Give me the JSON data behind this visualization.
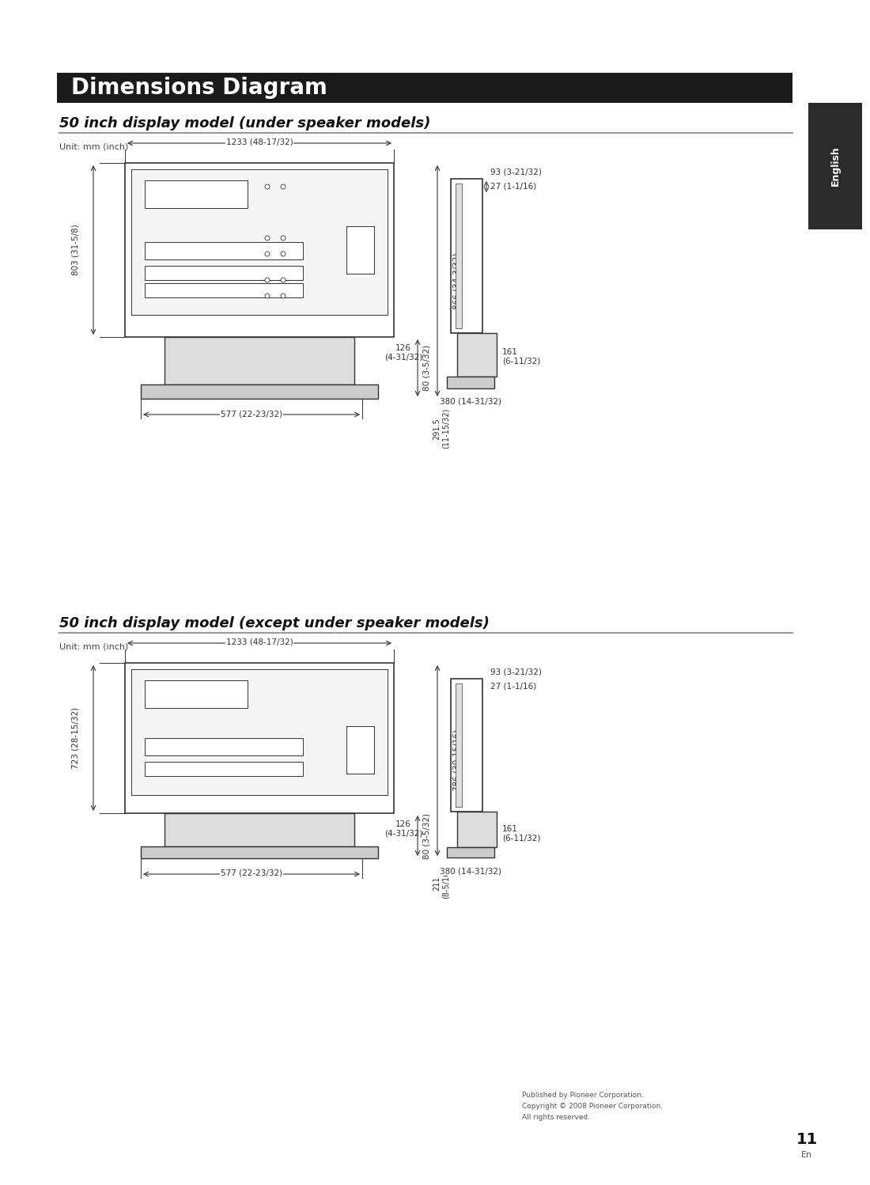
{
  "title": "Dimensions Diagram",
  "title_bg": "#1a1a1a",
  "title_color": "#ffffff",
  "section1_title": "50 inch display model (under speaker models)",
  "section2_title": "50 inch display model (except under speaker models)",
  "unit_label": "Unit: mm (inch)",
  "english_tab_color": "#2a2a2a",
  "english_text": "English",
  "page_number": "11",
  "page_sub": "En",
  "footer_line1": "Published by Pioneer Corporation.",
  "footer_line2": "Copyright © 2008 Pioneer Corporation.",
  "footer_line3": "All rights reserved.",
  "bg_color": "#ffffff",
  "line_color": "#333333",
  "dim_color": "#333333",
  "gray_fill": "#cccccc",
  "light_gray": "#e8e8e8",
  "section1_dims": {
    "front_width_label": "1233 (48-17/32)",
    "front_height_label": "803 (31-5/8)",
    "front_inner_height_label": "866 (34-3/32)",
    "front_partial_label": "80 (3-5/32)",
    "front_stand_label": "291.5\n(11-15/32)",
    "front_base_label": "577 (22-23/32)",
    "side_top_label": "93 (3-21/32)",
    "side_inner_label": "27 (1-1/16)",
    "side_depth_label": "126\n(4-31/32)",
    "side_total_label": "161\n(6-11/32)",
    "side_base_label": "380 (14-31/32)"
  },
  "section2_dims": {
    "front_width_label": "1233 (48-17/32)",
    "front_height_label": "723 (28-15/32)",
    "front_inner_height_label": "786 (30-15/16)",
    "front_partial_label": "80 (3-5/32)",
    "front_stand_label": "211\n(8-5/16)",
    "front_base_label": "577 (22-23/32)",
    "side_top_label": "93 (3-21/32)",
    "side_inner_label": "27 (1-1/16)",
    "side_depth_label": "126\n(4-31/32)",
    "side_total_label": "161\n(6-11/32)",
    "side_base_label": "380 (14-31/32)"
  }
}
